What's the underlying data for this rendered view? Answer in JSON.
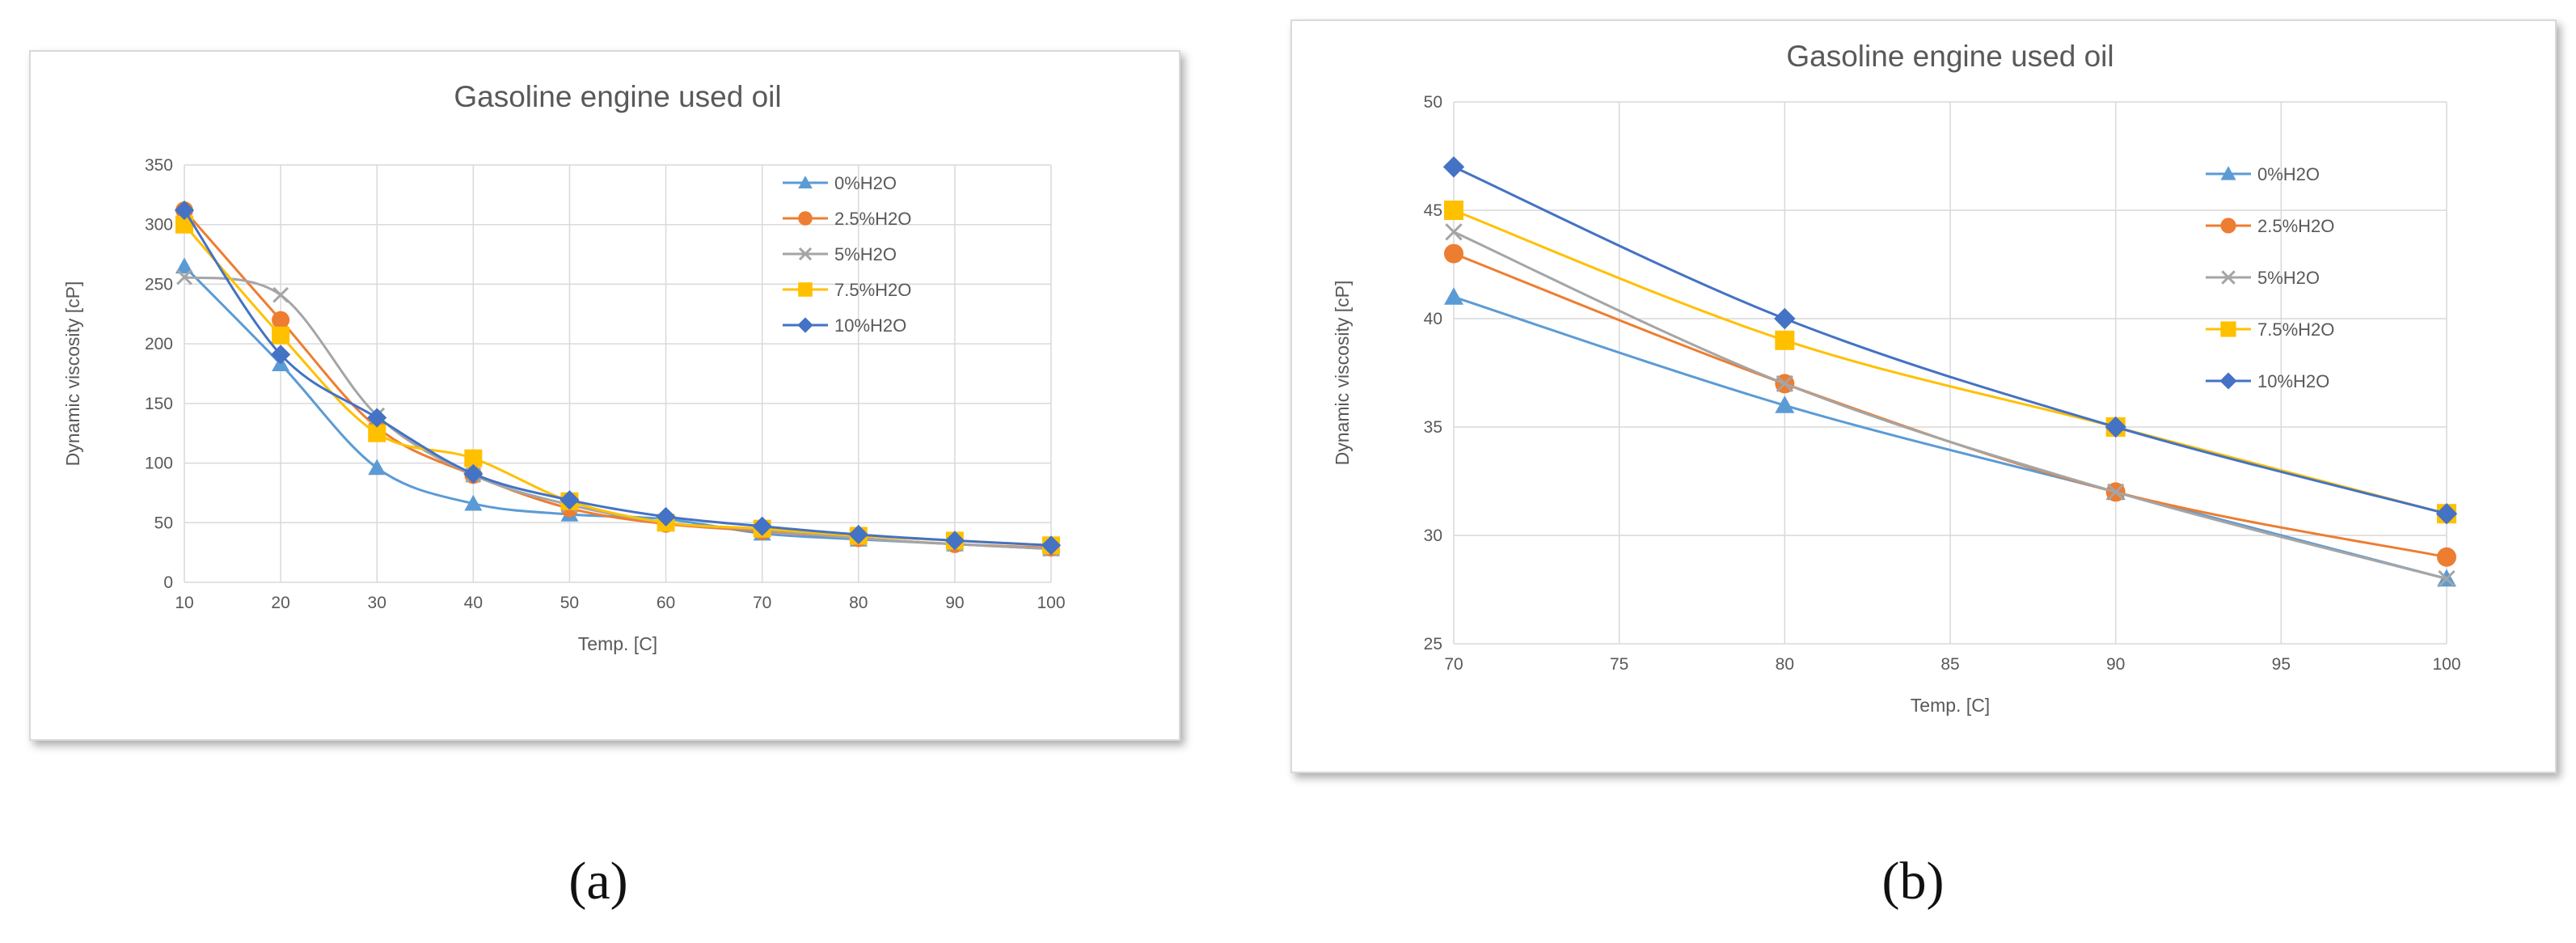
{
  "figure": {
    "caption_a": "(a)",
    "caption_b": "(b)"
  },
  "chart_data": [
    {
      "type": "line",
      "title": "Gasoline engine used oil",
      "xlabel": "Temp. [C]",
      "ylabel": "Dynamic viscosity [cP]",
      "xlim": [
        10,
        100
      ],
      "ylim": [
        0,
        350
      ],
      "xticks": [
        10,
        20,
        30,
        40,
        50,
        60,
        70,
        80,
        90,
        100
      ],
      "yticks": [
        0,
        50,
        100,
        150,
        200,
        250,
        300,
        350
      ],
      "x": [
        10,
        20,
        30,
        40,
        50,
        60,
        70,
        80,
        90,
        100
      ],
      "grid": true,
      "legend_position": "right",
      "series": [
        {
          "name": "0%H2O",
          "color": "#5b9bd5",
          "marker": "triangle",
          "values": [
            265,
            183,
            96,
            66,
            57,
            53,
            41,
            36,
            32,
            28
          ]
        },
        {
          "name": "2.5%H2O",
          "color": "#ed7d31",
          "marker": "circle",
          "values": [
            312,
            220,
            130,
            90,
            62,
            49,
            43,
            37,
            32,
            29
          ]
        },
        {
          "name": "5%H2O",
          "color": "#a5a5a5",
          "marker": "x",
          "values": [
            256,
            241,
            140,
            90,
            65,
            50,
            44,
            37,
            32,
            28
          ]
        },
        {
          "name": "7.5%H2O",
          "color": "#ffc000",
          "marker": "square",
          "values": [
            300,
            207,
            125,
            104,
            68,
            50,
            45,
            39,
            35,
            31
          ]
        },
        {
          "name": "10%H2O",
          "color": "#4472c4",
          "marker": "diamond",
          "values": [
            312,
            191,
            138,
            91,
            69,
            55,
            47,
            40,
            35,
            31
          ]
        }
      ]
    },
    {
      "type": "line",
      "title": "Gasoline engine used oil",
      "xlabel": "Temp. [C]",
      "ylabel": "Dynamic viscosity [cP]",
      "xlim": [
        70,
        100
      ],
      "ylim": [
        25,
        50
      ],
      "xticks": [
        70,
        75,
        80,
        85,
        90,
        95,
        100
      ],
      "yticks": [
        25,
        30,
        35,
        40,
        45,
        50
      ],
      "x": [
        70,
        80,
        90,
        100
      ],
      "grid": true,
      "legend_position": "right",
      "series": [
        {
          "name": "0%H2O",
          "color": "#5b9bd5",
          "marker": "triangle",
          "values": [
            41,
            36,
            32,
            28
          ]
        },
        {
          "name": "2.5%H2O",
          "color": "#ed7d31",
          "marker": "circle",
          "values": [
            43,
            37,
            32,
            29
          ]
        },
        {
          "name": "5%H2O",
          "color": "#a5a5a5",
          "marker": "x",
          "values": [
            44,
            37,
            32,
            28
          ]
        },
        {
          "name": "7.5%H2O",
          "color": "#ffc000",
          "marker": "square",
          "values": [
            45,
            39,
            35,
            31
          ]
        },
        {
          "name": "10%H2O",
          "color": "#4472c4",
          "marker": "diamond",
          "values": [
            47,
            40,
            35,
            31
          ]
        }
      ]
    }
  ]
}
